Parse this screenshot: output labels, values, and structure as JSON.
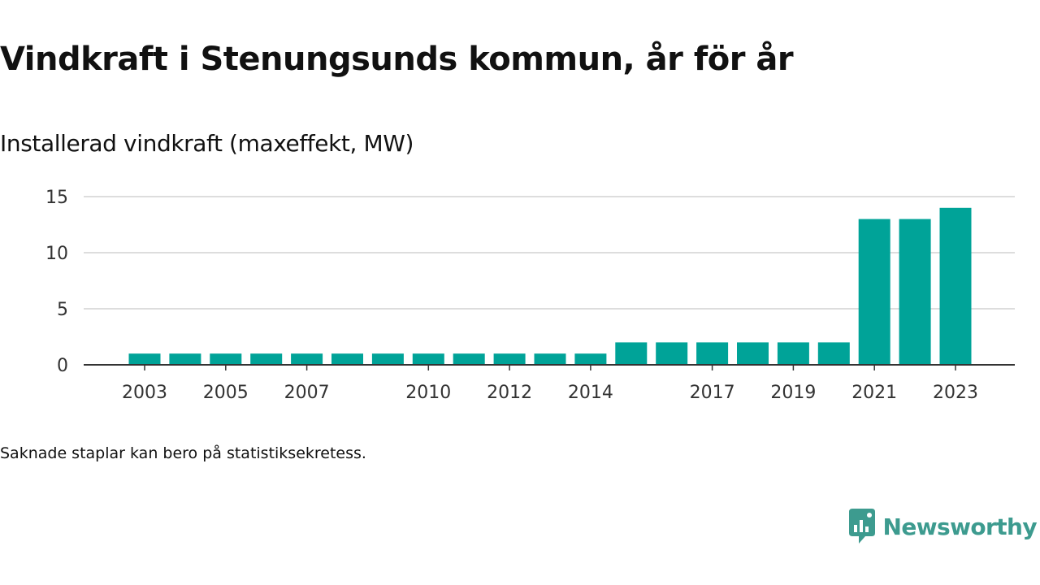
{
  "title": "Vindkraft i Stenungsunds kommun, år för år",
  "subtitle": "Installerad vindkraft (maxeffekt, MW)",
  "footnote": "Saknade staplar kan bero på statistiksekretess.",
  "brand": {
    "name": "Newsworthy",
    "icon": "newsworthy-logo-icon"
  },
  "colors": {
    "bar": "#00a398",
    "grid": "#dddddd",
    "axis": "#333333",
    "brand": "#3d9b8f"
  },
  "chart_data": {
    "type": "bar",
    "title": "Vindkraft i Stenungsunds kommun, år för år",
    "subtitle": "Installerad vindkraft (maxeffekt, MW)",
    "xlabel": "",
    "ylabel": "",
    "categories": [
      "2003",
      "2004",
      "2005",
      "2006",
      "2007",
      "2008",
      "2009",
      "2010",
      "2011",
      "2012",
      "2013",
      "2014",
      "2015",
      "2016",
      "2017",
      "2018",
      "2019",
      "2020",
      "2021",
      "2022",
      "2023"
    ],
    "values": [
      1,
      1,
      1,
      1,
      1,
      1,
      1,
      1,
      1,
      1,
      1,
      1,
      2,
      2,
      2,
      2,
      2,
      2,
      13,
      13,
      14
    ],
    "x_tick_labels": [
      "2003",
      "2005",
      "2007",
      "2010",
      "2012",
      "2014",
      "2017",
      "2019",
      "2021",
      "2023"
    ],
    "y_ticks": [
      0,
      5,
      10,
      15
    ],
    "ylim": [
      0,
      15
    ],
    "grid": true,
    "legend": "none"
  }
}
